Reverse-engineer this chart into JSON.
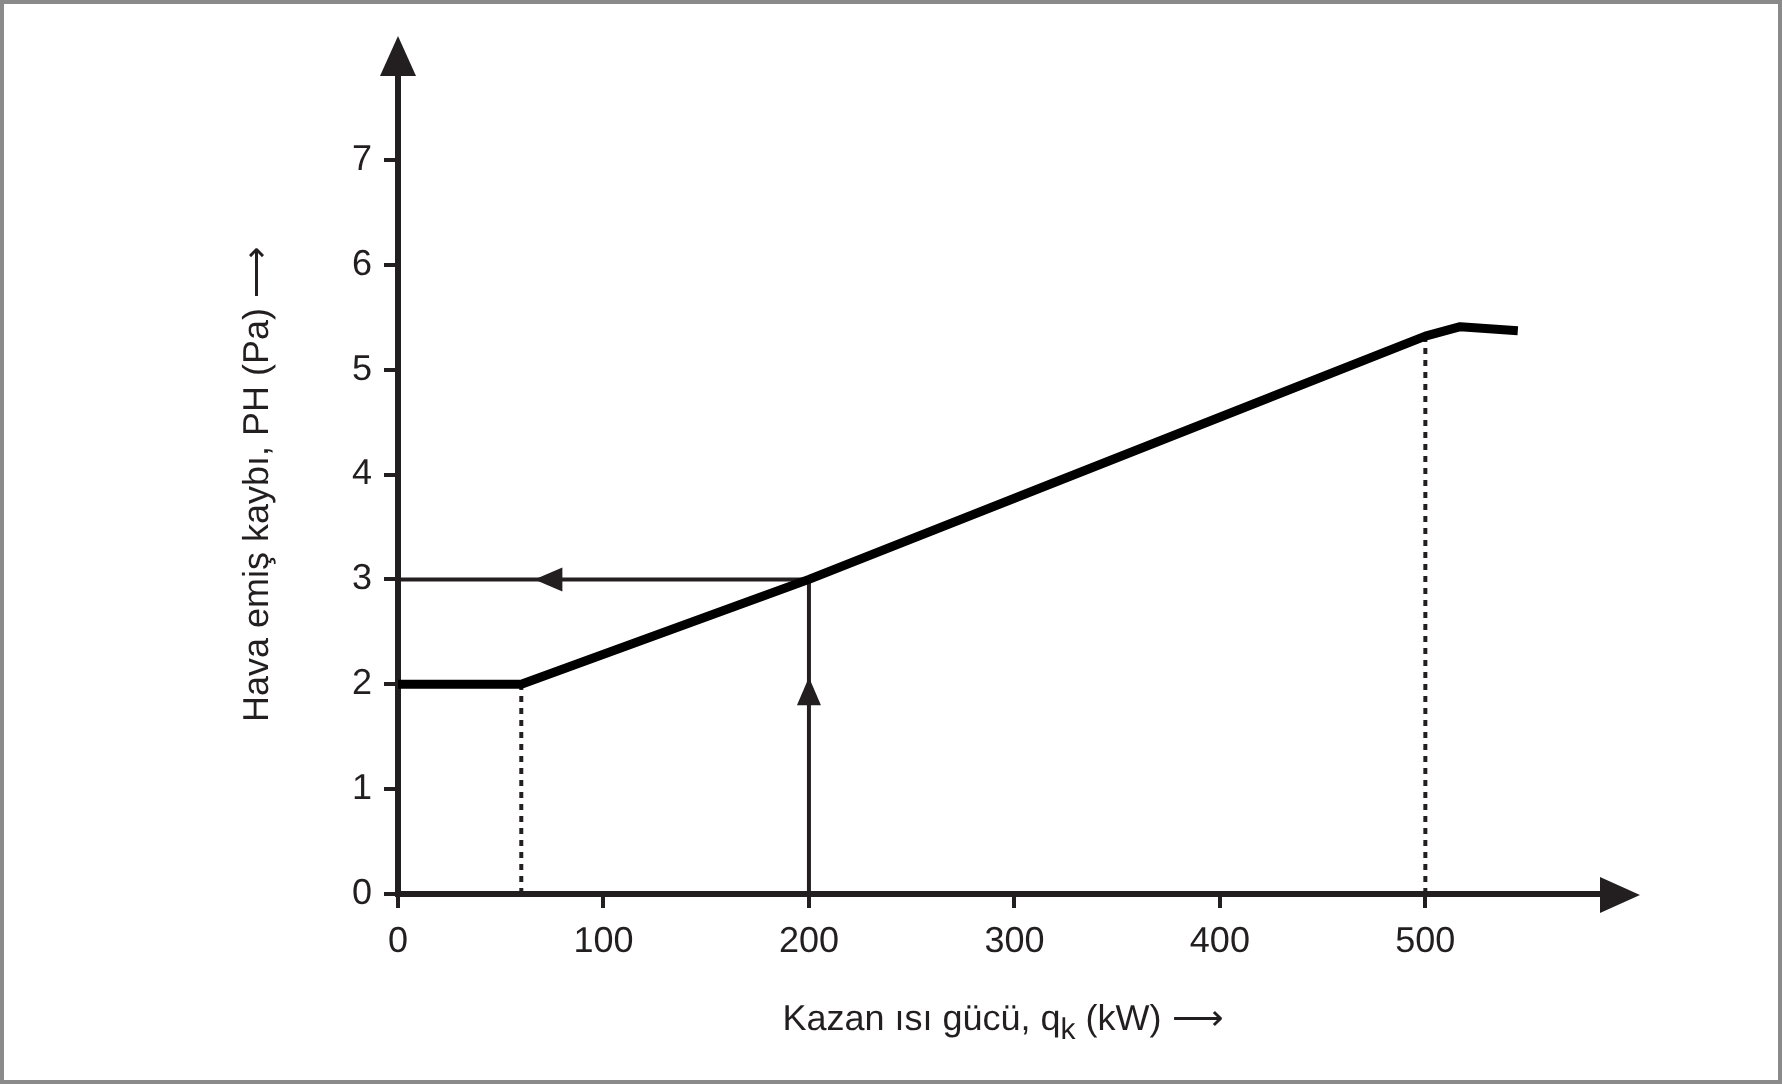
{
  "chart_data": {
    "type": "line",
    "xlabel": "Kazan ısı gücü, q$_{k}$ (kW) ⟶",
    "ylabel": "Hava emiş kaybı, PH (Pa) ⟶",
    "xlim": [
      0,
      585
    ],
    "ylim": [
      0,
      7.8
    ],
    "xticks": [
      0,
      100,
      200,
      300,
      400,
      500
    ],
    "yticks": [
      0,
      1,
      2,
      3,
      4,
      5,
      6,
      7
    ],
    "grid": false,
    "legend": false,
    "marker": "none",
    "series": [
      {
        "color": "#000000",
        "x": [
          0,
          60,
          200,
          500,
          517,
          545
        ],
        "values": [
          2,
          2,
          3,
          5.32,
          5.41,
          5.37
        ],
        "line_style": "solid"
      },
      {
        "color": "#231f20",
        "x": [
          200,
          200,
          0
        ],
        "values": [
          0,
          3,
          3
        ],
        "line_style": "solid"
      },
      {
        "color": "#231f20",
        "x": [
          60,
          60
        ],
        "values": [
          0,
          2
        ],
        "line_style": "dotted"
      },
      {
        "color": "#231f20",
        "x": [
          500,
          500
        ],
        "values": [
          0,
          5.32
        ],
        "line_style": "dotted"
      }
    ]
  }
}
